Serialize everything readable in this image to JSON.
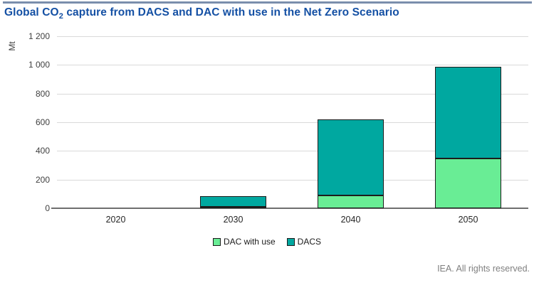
{
  "page": {
    "title_prefix": "Global CO",
    "title_sub": "2",
    "title_suffix": " capture from DACS and DAC with use in the Net Zero Scenario",
    "footer": "IEA. All rights reserved."
  },
  "colors": {
    "title_text": "#1450A4",
    "top_divider": "#7A8EAC",
    "gridline": "#D9D9D9",
    "axis_line": "#6E6E6E",
    "bar_border": "#1C1C1C",
    "tick_text": "#404040",
    "footer_text": "#7F7F7F"
  },
  "chart_data": {
    "type": "bar",
    "stacked": true,
    "title": "Global CO2 capture from DACS and DAC with use in the Net Zero Scenario",
    "ylabel": "Mt",
    "xlabel": "",
    "categories": [
      "2020",
      "2030",
      "2040",
      "2050"
    ],
    "series": [
      {
        "name": "DAC with use",
        "color": "#69ED95",
        "values": [
          0,
          10,
          90,
          345
        ]
      },
      {
        "name": "DACS",
        "color": "#00A8A0",
        "values": [
          0,
          75,
          530,
          640
        ]
      }
    ],
    "totals": [
      0,
      85,
      620,
      985
    ],
    "ylim": [
      0,
      1200
    ],
    "ytick_step": 200,
    "ytick_labels": [
      "1 200",
      "1 000",
      "800",
      "600",
      "400",
      "200",
      "0"
    ],
    "grid": true,
    "legend_position": "bottom"
  }
}
